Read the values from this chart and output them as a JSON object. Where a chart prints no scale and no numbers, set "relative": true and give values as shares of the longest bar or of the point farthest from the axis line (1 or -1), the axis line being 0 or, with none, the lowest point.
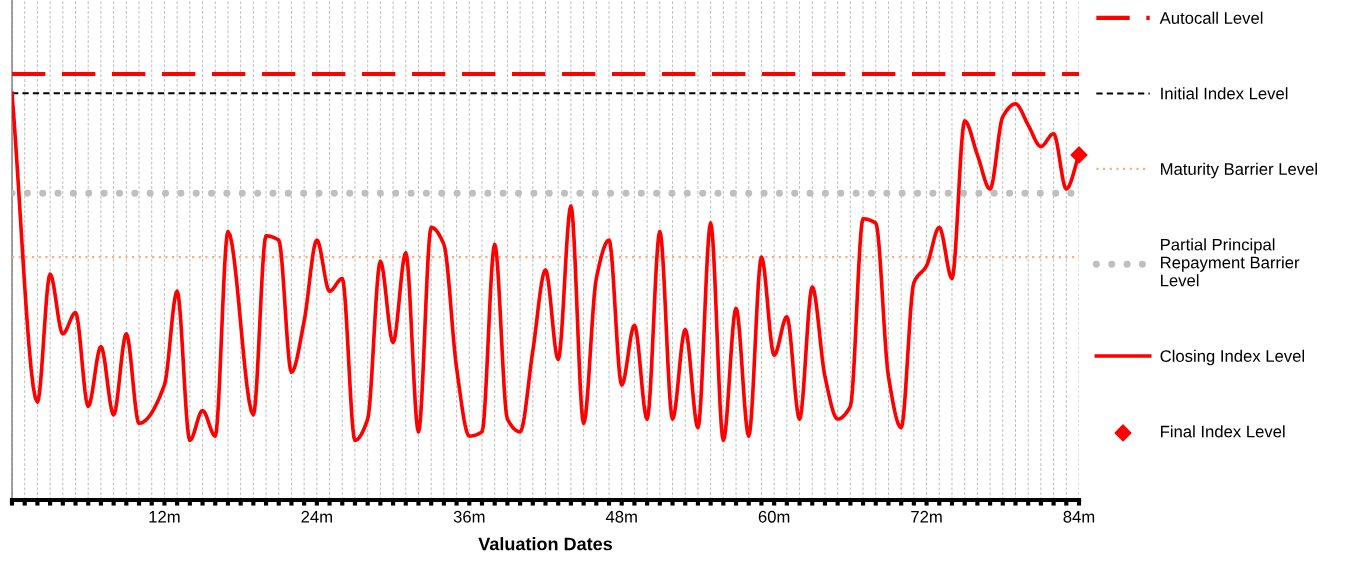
{
  "chart_data": {
    "type": "line",
    "relative": true,
    "xlabel": "Valuation Dates",
    "xlim": [
      0,
      84
    ],
    "xticks": [
      {
        "value": 0,
        "label": null
      },
      {
        "value": 1,
        "label": null
      },
      {
        "value": 2,
        "label": null
      },
      {
        "value": 3,
        "label": null
      },
      {
        "value": 4,
        "label": null
      },
      {
        "value": 5,
        "label": null
      },
      {
        "value": 6,
        "label": null
      },
      {
        "value": 7,
        "label": null
      },
      {
        "value": 8,
        "label": null
      },
      {
        "value": 9,
        "label": null
      },
      {
        "value": 10,
        "label": null
      },
      {
        "value": 11,
        "label": null
      },
      {
        "value": 12,
        "label": "12m"
      },
      {
        "value": 13,
        "label": null
      },
      {
        "value": 14,
        "label": null
      },
      {
        "value": 15,
        "label": null
      },
      {
        "value": 16,
        "label": null
      },
      {
        "value": 17,
        "label": null
      },
      {
        "value": 18,
        "label": null
      },
      {
        "value": 19,
        "label": null
      },
      {
        "value": 20,
        "label": null
      },
      {
        "value": 21,
        "label": null
      },
      {
        "value": 22,
        "label": null
      },
      {
        "value": 23,
        "label": null
      },
      {
        "value": 24,
        "label": "24m"
      },
      {
        "value": 25,
        "label": null
      },
      {
        "value": 26,
        "label": null
      },
      {
        "value": 27,
        "label": null
      },
      {
        "value": 28,
        "label": null
      },
      {
        "value": 29,
        "label": null
      },
      {
        "value": 30,
        "label": null
      },
      {
        "value": 31,
        "label": null
      },
      {
        "value": 32,
        "label": null
      },
      {
        "value": 33,
        "label": null
      },
      {
        "value": 34,
        "label": null
      },
      {
        "value": 35,
        "label": null
      },
      {
        "value": 36,
        "label": "36m"
      },
      {
        "value": 37,
        "label": null
      },
      {
        "value": 38,
        "label": null
      },
      {
        "value": 39,
        "label": null
      },
      {
        "value": 40,
        "label": null
      },
      {
        "value": 41,
        "label": null
      },
      {
        "value": 42,
        "label": null
      },
      {
        "value": 43,
        "label": null
      },
      {
        "value": 44,
        "label": null
      },
      {
        "value": 45,
        "label": null
      },
      {
        "value": 46,
        "label": null
      },
      {
        "value": 47,
        "label": null
      },
      {
        "value": 48,
        "label": "48m"
      },
      {
        "value": 49,
        "label": null
      },
      {
        "value": 50,
        "label": null
      },
      {
        "value": 51,
        "label": null
      },
      {
        "value": 52,
        "label": null
      },
      {
        "value": 53,
        "label": null
      },
      {
        "value": 54,
        "label": null
      },
      {
        "value": 55,
        "label": null
      },
      {
        "value": 56,
        "label": null
      },
      {
        "value": 57,
        "label": null
      },
      {
        "value": 58,
        "label": null
      },
      {
        "value": 59,
        "label": null
      },
      {
        "value": 60,
        "label": "60m"
      },
      {
        "value": 61,
        "label": null
      },
      {
        "value": 62,
        "label": null
      },
      {
        "value": 63,
        "label": null
      },
      {
        "value": 64,
        "label": null
      },
      {
        "value": 65,
        "label": null
      },
      {
        "value": 66,
        "label": null
      },
      {
        "value": 67,
        "label": null
      },
      {
        "value": 68,
        "label": null
      },
      {
        "value": 69,
        "label": null
      },
      {
        "value": 70,
        "label": null
      },
      {
        "value": 71,
        "label": null
      },
      {
        "value": 72,
        "label": "72m"
      },
      {
        "value": 73,
        "label": null
      },
      {
        "value": 74,
        "label": null
      },
      {
        "value": 75,
        "label": null
      },
      {
        "value": 76,
        "label": null
      },
      {
        "value": 77,
        "label": null
      },
      {
        "value": 78,
        "label": null
      },
      {
        "value": 79,
        "label": null
      },
      {
        "value": 80,
        "label": null
      },
      {
        "value": 81,
        "label": null
      },
      {
        "value": 82,
        "label": null
      },
      {
        "value": 83,
        "label": null
      },
      {
        "value": 84,
        "label": "84m"
      }
    ],
    "tick_labels": "x",
    "grid": "x",
    "legend": "right",
    "series": [
      {
        "name": "Autocall Level",
        "color": "#ff0000",
        "line_style": "dashed",
        "x": [
          0,
          84
        ],
        "values": [
          1,
          1
        ]
      },
      {
        "name": "Initial Index Level",
        "color": "#000000",
        "line_style": "dashed",
        "x": [
          0,
          84
        ],
        "values": [
          0.955,
          0.955
        ]
      },
      {
        "name": "Maturity Barrier Level",
        "color": "#f4b183",
        "line_style": "dotted",
        "x": [
          0,
          84
        ],
        "values": [
          0.57,
          0.57
        ]
      },
      {
        "name": "Partial Principal Repayment Barrier Level",
        "color": "#bfbfbf",
        "line_style": "dotted",
        "x": [
          0,
          84
        ],
        "values": [
          0.72,
          0.72
        ]
      },
      {
        "name": "Closing Index Level",
        "color": "#ff0000",
        "line_style": "solid",
        "x": [
          0,
          2,
          3,
          4,
          5,
          6,
          7,
          8,
          9,
          10,
          12,
          13,
          14,
          15,
          16,
          17,
          19,
          20,
          21,
          22,
          23,
          24,
          25,
          26,
          27,
          28,
          29,
          30,
          31,
          32,
          33,
          34,
          35,
          36,
          37,
          38,
          39,
          40,
          41,
          42,
          43,
          44,
          45,
          46,
          47,
          48,
          49,
          50,
          51,
          52,
          53,
          54,
          55,
          56,
          57,
          58,
          59,
          60,
          61,
          62,
          63,
          64,
          65,
          66,
          67,
          68,
          69,
          70,
          71,
          72,
          73,
          74,
          75,
          76,
          77,
          78,
          79,
          80,
          81,
          82,
          83,
          84
        ],
        "values": [
          0.955,
          0.23,
          0.53,
          0.39,
          0.44,
          0.22,
          0.36,
          0.2,
          0.39,
          0.18,
          0.27,
          0.49,
          0.14,
          0.21,
          0.15,
          0.63,
          0.2,
          0.62,
          0.61,
          0.3,
          0.42,
          0.61,
          0.49,
          0.52,
          0.14,
          0.19,
          0.56,
          0.37,
          0.58,
          0.16,
          0.64,
          0.6,
          0.31,
          0.15,
          0.16,
          0.6,
          0.19,
          0.16,
          0.35,
          0.54,
          0.33,
          0.69,
          0.18,
          0.52,
          0.61,
          0.27,
          0.41,
          0.19,
          0.63,
          0.19,
          0.4,
          0.17,
          0.65,
          0.14,
          0.45,
          0.15,
          0.57,
          0.34,
          0.43,
          0.19,
          0.5,
          0.29,
          0.19,
          0.22,
          0.66,
          0.65,
          0.29,
          0.17,
          0.51,
          0.55,
          0.64,
          0.52,
          0.89,
          0.81,
          0.73,
          0.9,
          0.93,
          0.88,
          0.83,
          0.86,
          0.73,
          0.81
        ]
      },
      {
        "name": "Final Index Level",
        "type": "scatter",
        "marker": "diamond",
        "color": "#ff0000",
        "x": [
          84
        ],
        "values": [
          0.81
        ]
      }
    ]
  }
}
